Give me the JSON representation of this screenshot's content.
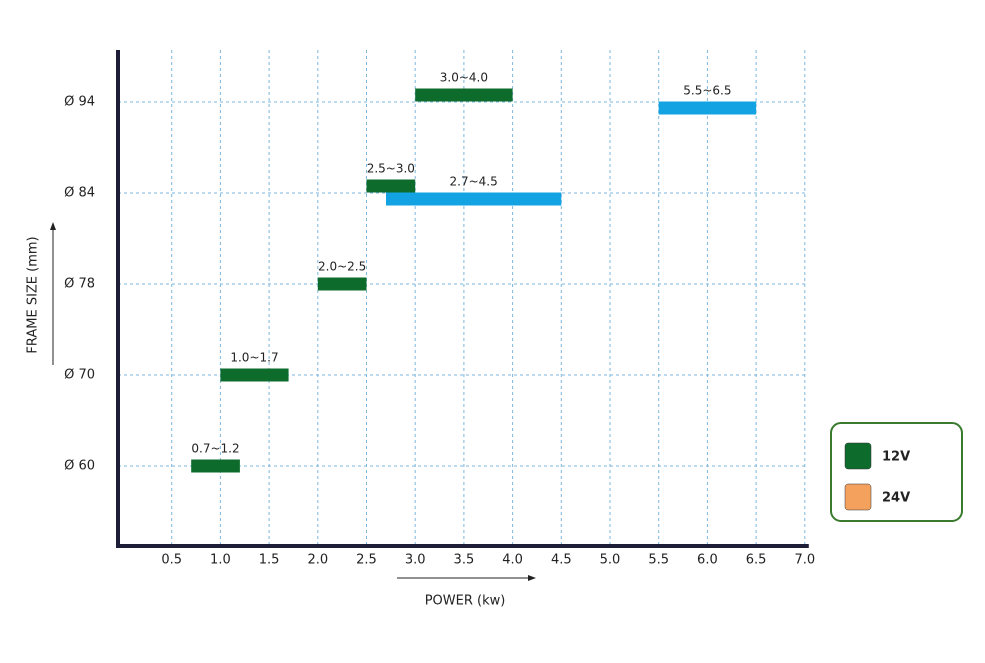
{
  "chart_data": {
    "type": "range-bar",
    "x_label": "POWER (kw)",
    "y_label": "FRAME SIZE (mm)",
    "categories": [
      "Ø 60",
      "Ø 70",
      "Ø 78",
      "Ø 84",
      "Ø 94"
    ],
    "xlim": [
      0,
      7
    ],
    "xticks": [
      0.5,
      {
        "value": 1,
        "label": "1.0"
      },
      1.5,
      {
        "value": 2,
        "label": "2.0"
      },
      2.5,
      {
        "value": 3,
        "label": "3.0"
      },
      3.5,
      {
        "value": 4,
        "label": "4.0"
      },
      4.5,
      {
        "value": 5,
        "label": "5.0"
      },
      5.5,
      {
        "value": 6,
        "label": "6.0"
      },
      6.5,
      {
        "value": 7,
        "label": "7.0"
      }
    ],
    "grid": true,
    "series": [
      {
        "name": "12V",
        "color": "#0d6b2c",
        "legend_color": "#0d6b2c",
        "low": [
          0.7,
          1.0,
          2.0,
          2.5,
          3.0
        ],
        "high": [
          1.2,
          1.7,
          2.5,
          3.0,
          4.0
        ],
        "value_labels": [
          "0.7~1.2",
          "1.0~1.7",
          "2.0~2.5",
          "2.5~3.0",
          "3.0~4.0"
        ]
      },
      {
        "name": "24V",
        "color": "#13a3e3",
        "legend_color": "#f4a15d",
        "low": [
          null,
          null,
          null,
          2.7,
          5.5
        ],
        "high": [
          null,
          null,
          null,
          4.5,
          6.5
        ],
        "value_labels": [
          null,
          null,
          null,
          "2.7~4.5",
          "5.5~6.5"
        ]
      }
    ]
  }
}
